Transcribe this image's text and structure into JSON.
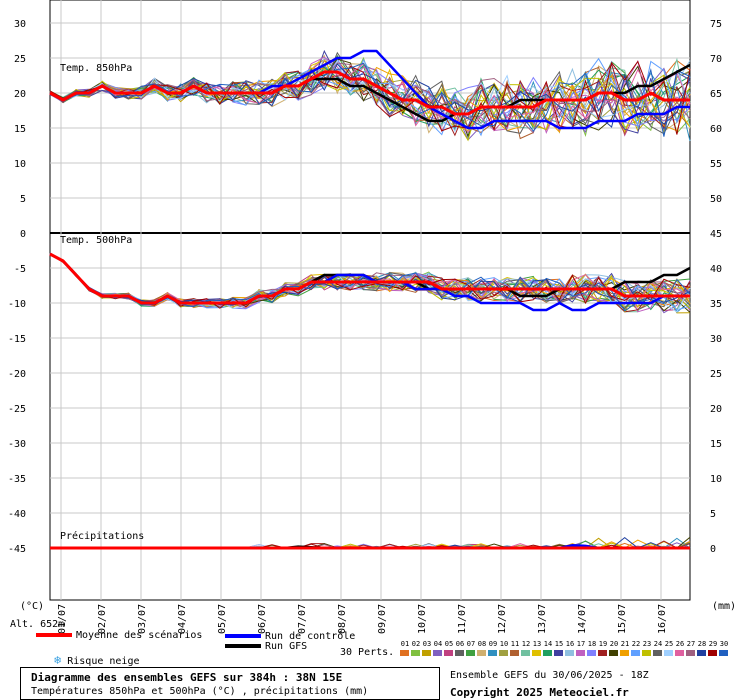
{
  "chart_data": {
    "type": "line",
    "title": "Diagramme des ensembles GEFS sur 384h : 38N 15E",
    "subtitle": "Températures 850hPa et 500hPa (°C) , précipitations (mm)",
    "x_labels": [
      "01/07",
      "02/07",
      "03/07",
      "04/07",
      "05/07",
      "06/07",
      "07/07",
      "08/07",
      "09/07",
      "10/07",
      "11/07",
      "12/07",
      "13/07",
      "14/07",
      "15/07",
      "16/07"
    ],
    "left_axis": {
      "unit": "(°C)",
      "ticks": [
        30,
        25,
        20,
        15,
        10,
        5,
        0,
        -5,
        -10,
        -15,
        -20,
        -25,
        -30,
        -35,
        -40,
        -45
      ]
    },
    "right_axis_top": {
      "ticks": [
        75,
        70,
        65,
        60,
        55,
        50
      ]
    },
    "right_axis_bottom": {
      "ticks": [
        45,
        40,
        35,
        30,
        25,
        20,
        15,
        10,
        5,
        0
      ],
      "unit": "(mm)"
    },
    "altitude_label": "Alt. 652m",
    "panel_labels": {
      "t850": "Temp. 850hPa",
      "t500": "Temp. 500hPa",
      "precip": "Précipitations"
    },
    "series": [
      {
        "name": "Moyenne des scénarios",
        "color": "#ff0000",
        "t850": [
          20,
          19,
          20,
          20,
          21,
          20,
          20,
          20,
          21,
          20,
          20,
          21,
          20,
          20,
          20,
          20,
          20,
          20,
          21,
          21,
          22,
          23,
          23,
          22,
          22,
          21,
          20,
          19,
          19,
          18,
          18,
          17,
          17,
          18,
          18,
          18,
          18,
          18,
          19,
          19,
          19,
          19,
          20,
          20,
          19,
          19,
          20,
          19,
          19,
          19
        ],
        "t500": [
          -3,
          -4,
          -6,
          -8,
          -9,
          -9,
          -9,
          -10,
          -10,
          -9,
          -10,
          -10,
          -10,
          -10,
          -10,
          -10,
          -9,
          -9,
          -8,
          -8,
          -7,
          -7,
          -7,
          -7,
          -7,
          -7,
          -7,
          -7,
          -7,
          -7,
          -8,
          -8,
          -8,
          -8,
          -8,
          -8,
          -8,
          -8,
          -8,
          -8,
          -8,
          -8,
          -8,
          -8,
          -9,
          -9,
          -9,
          -9,
          -9,
          -9
        ],
        "precip": [
          0,
          0,
          0,
          0,
          0,
          0,
          0,
          0,
          0,
          0,
          0,
          0,
          0,
          0,
          0,
          0,
          0,
          0,
          0,
          0,
          0,
          0,
          0,
          0,
          0,
          0,
          0,
          0,
          0,
          0,
          0,
          0,
          0,
          0,
          0,
          0,
          0,
          0,
          0,
          0,
          0,
          0,
          0,
          0,
          0,
          0,
          0,
          0,
          0,
          0
        ]
      },
      {
        "name": "Run de contrôle",
        "color": "#0000ff",
        "t850": [
          20,
          19,
          20,
          20,
          21,
          20,
          20,
          20,
          21,
          20,
          20,
          21,
          20,
          20,
          20,
          20,
          20,
          21,
          21,
          22,
          23,
          24,
          25,
          25,
          26,
          26,
          24,
          22,
          20,
          18,
          17,
          16,
          15,
          15,
          16,
          16,
          16,
          16,
          16,
          15,
          15,
          15,
          16,
          16,
          16,
          17,
          17,
          17,
          18,
          18
        ],
        "t500": [
          -3,
          -4,
          -6,
          -8,
          -9,
          -9,
          -9,
          -10,
          -10,
          -9,
          -10,
          -10,
          -10,
          -10,
          -10,
          -10,
          -9,
          -9,
          -8,
          -8,
          -7,
          -7,
          -6,
          -6,
          -6,
          -7,
          -7,
          -7,
          -8,
          -8,
          -8,
          -9,
          -9,
          -10,
          -10,
          -10,
          -10,
          -11,
          -11,
          -10,
          -11,
          -11,
          -10,
          -10,
          -10,
          -10,
          -10,
          -9,
          -9,
          -9
        ],
        "precip": [
          0,
          0,
          0,
          0,
          0,
          0,
          0,
          0,
          0,
          0,
          0,
          0,
          0,
          0,
          0,
          0,
          0,
          0,
          0,
          0,
          0,
          0,
          0,
          0,
          0,
          0,
          0,
          0,
          0,
          0,
          0,
          0,
          0,
          0,
          0,
          0,
          0,
          0,
          0,
          0,
          0.4,
          0.3,
          0,
          0,
          0,
          0,
          0,
          0,
          0,
          0
        ]
      },
      {
        "name": "Run GFS",
        "color": "#000000",
        "t850": [
          20,
          19,
          20,
          20,
          21,
          20,
          20,
          20,
          21,
          20,
          20,
          21,
          20,
          20,
          20,
          20,
          20,
          20,
          21,
          21,
          22,
          22,
          22,
          21,
          21,
          20,
          19,
          18,
          17,
          16,
          16,
          17,
          17,
          18,
          18,
          18,
          19,
          19,
          19,
          19,
          19,
          19,
          20,
          20,
          20,
          21,
          21,
          22,
          23,
          24
        ],
        "t500": [
          -3,
          -4,
          -6,
          -8,
          -9,
          -9,
          -9,
          -10,
          -10,
          -9,
          -10,
          -10,
          -10,
          -10,
          -10,
          -10,
          -9,
          -9,
          -8,
          -8,
          -7,
          -6,
          -6,
          -6,
          -6,
          -7,
          -7,
          -7,
          -7,
          -8,
          -8,
          -8,
          -8,
          -8,
          -8,
          -8,
          -9,
          -9,
          -9,
          -8,
          -8,
          -8,
          -8,
          -8,
          -7,
          -7,
          -7,
          -6,
          -6,
          -5
        ],
        "precip": [
          0,
          0,
          0,
          0,
          0,
          0,
          0,
          0,
          0,
          0,
          0,
          0,
          0,
          0,
          0,
          0,
          0,
          0,
          0,
          0.2,
          0.1,
          0,
          0,
          0,
          0,
          0,
          0,
          0,
          0,
          0,
          0,
          0,
          0,
          0,
          0,
          0,
          0,
          0,
          0,
          0,
          0,
          0,
          0,
          0,
          0,
          0,
          0,
          0,
          0,
          0
        ]
      }
    ]
  },
  "legend": {
    "mean": "Moyenne des scénarios",
    "control": "Run de contrôle",
    "gfs": "Run GFS",
    "snow": "Risque neige",
    "perts": "30 Perts."
  },
  "perturbations": {
    "labels": [
      "01",
      "02",
      "03",
      "04",
      "05",
      "06",
      "07",
      "08",
      "09",
      "10",
      "11",
      "12",
      "13",
      "14",
      "15",
      "16",
      "17",
      "18",
      "19",
      "20",
      "21",
      "22",
      "23",
      "24",
      "25",
      "26",
      "27",
      "28",
      "29",
      "30"
    ],
    "colors": [
      "#e07020",
      "#80c040",
      "#c0a000",
      "#8060c0",
      "#c04080",
      "#606060",
      "#40a040",
      "#d0b070",
      "#3090c0",
      "#a0a040",
      "#b06030",
      "#70c0a0",
      "#e0c000",
      "#20a060",
      "#4040a0",
      "#90c0e0",
      "#c060c0",
      "#8080ff",
      "#a02020",
      "#404000",
      "#f0a000",
      "#60a0ff",
      "#c0c000",
      "#606060",
      "#a0d0ff",
      "#e060a0",
      "#a06080",
      "#2040a0",
      "#a00000",
      "#2060c0"
    ]
  },
  "footer": {
    "title": "Diagramme des ensembles GEFS sur 384h : 38N 15E",
    "subtitle": "Températures 850hPa et 500hPa (°C) , précipitations (mm)",
    "run": "Ensemble GEFS du 30/06/2025 - 18Z",
    "copyright": "Copyright 2025 Meteociel.fr"
  }
}
